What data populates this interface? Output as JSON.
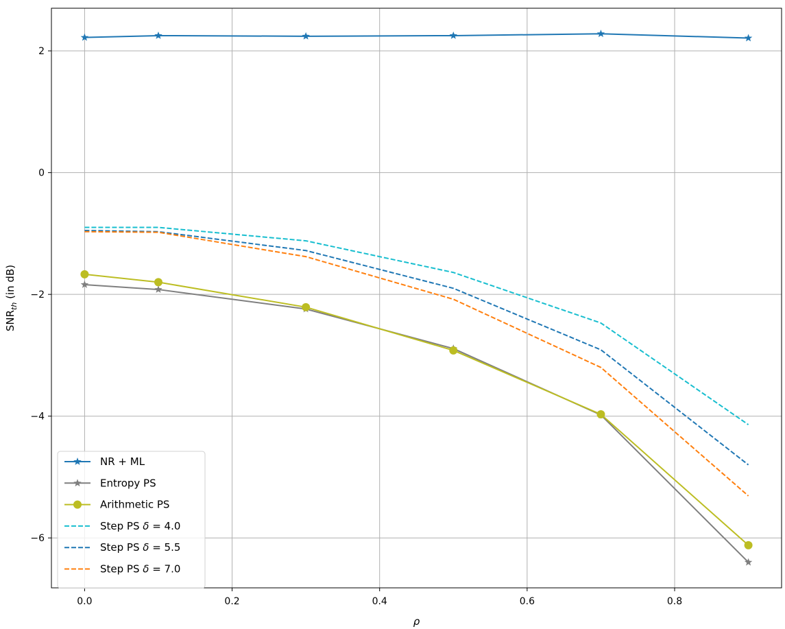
{
  "chart_data": {
    "type": "line",
    "xlabel": "ρ",
    "ylabel_main": "SNR",
    "ylabel_sub": "th",
    "ylabel_rest": " (in dB)",
    "xlim": [
      -0.045,
      0.945
    ],
    "ylim": [
      -6.82,
      2.7
    ],
    "xticks": [
      0.0,
      0.2,
      0.4,
      0.6,
      0.8
    ],
    "xtick_labels": [
      "0.0",
      "0.2",
      "0.4",
      "0.6",
      "0.8"
    ],
    "yticks": [
      -6,
      -4,
      -2,
      0,
      2
    ],
    "ytick_labels": [
      "−6",
      "−4",
      "−2",
      "0",
      "2"
    ],
    "grid": true,
    "legend_position": "lower-left",
    "series": [
      {
        "name": "NR + ML",
        "color": "#1f77b4",
        "dash": "solid",
        "marker": "star",
        "x": [
          0.0,
          0.1,
          0.3,
          0.5,
          0.7,
          0.9
        ],
        "y": [
          2.22,
          2.25,
          2.24,
          2.25,
          2.28,
          2.21
        ]
      },
      {
        "name": "Entropy PS",
        "color": "#7f7f7f",
        "dash": "solid",
        "marker": "star",
        "x": [
          0.0,
          0.1,
          0.3,
          0.5,
          0.7,
          0.9
        ],
        "y": [
          -1.84,
          -1.92,
          -2.24,
          -2.89,
          -3.98,
          -6.4
        ]
      },
      {
        "name": "Arithmetic PS",
        "color": "#bcbd22",
        "dash": "solid",
        "marker": "circle",
        "x": [
          0.0,
          0.1,
          0.3,
          0.5,
          0.7,
          0.9
        ],
        "y": [
          -1.67,
          -1.8,
          -2.21,
          -2.92,
          -3.97,
          -6.12
        ]
      },
      {
        "name": "Step PS δ = 4.0",
        "name_prefix": "Step PS ",
        "name_math": "δ",
        "name_suffix": " = 4.0",
        "color": "#17becf",
        "dash": "dashed",
        "marker": "none",
        "x": [
          0.0,
          0.1,
          0.3,
          0.5,
          0.7,
          0.9
        ],
        "y": [
          -0.9,
          -0.9,
          -1.12,
          -1.64,
          -2.47,
          -4.14
        ]
      },
      {
        "name": "Step PS δ = 5.5",
        "name_prefix": "Step PS ",
        "name_math": "δ",
        "name_suffix": " = 5.5",
        "color": "#1f77b4",
        "dash": "dashed",
        "marker": "none",
        "x": [
          0.0,
          0.1,
          0.3,
          0.5,
          0.7,
          0.9
        ],
        "y": [
          -0.95,
          -0.97,
          -1.28,
          -1.9,
          -2.91,
          -4.8
        ]
      },
      {
        "name": "Step PS δ = 7.0",
        "name_prefix": "Step PS ",
        "name_math": "δ",
        "name_suffix": " = 7.0",
        "color": "#ff7f0e",
        "dash": "dashed",
        "marker": "none",
        "x": [
          0.0,
          0.1,
          0.3,
          0.5,
          0.7,
          0.9
        ],
        "y": [
          -0.97,
          -0.98,
          -1.38,
          -2.08,
          -3.2,
          -5.31
        ]
      }
    ]
  }
}
